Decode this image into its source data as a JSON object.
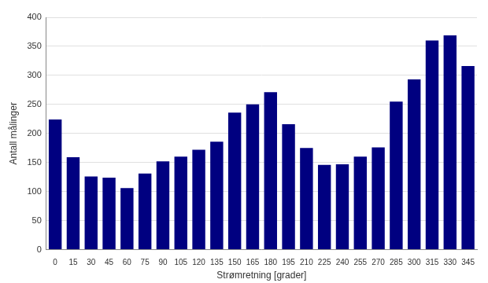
{
  "chart_data": {
    "type": "bar",
    "x_label": "Strømretning [grader]",
    "y_label": "Antall målinger",
    "categories": [
      "0",
      "15",
      "30",
      "45",
      "60",
      "75",
      "90",
      "105",
      "120",
      "135",
      "150",
      "165",
      "180",
      "195",
      "210",
      "225",
      "240",
      "255",
      "270",
      "285",
      "300",
      "315",
      "330",
      "345"
    ],
    "values": [
      224,
      159,
      126,
      124,
      106,
      131,
      152,
      160,
      172,
      186,
      236,
      250,
      271,
      216,
      175,
      146,
      147,
      160,
      176,
      255,
      293,
      360,
      369,
      316
    ],
    "color": "#000080",
    "ylim": [
      0,
      400
    ],
    "yticks": [
      0,
      50,
      100,
      150,
      200,
      250,
      300,
      350,
      400
    ],
    "grid": true
  }
}
